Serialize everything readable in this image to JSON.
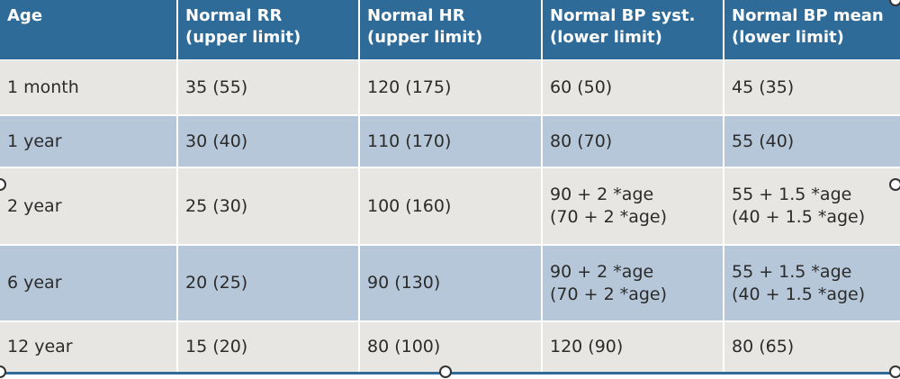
{
  "table": {
    "header": [
      [
        "Age"
      ],
      [
        "Normal RR",
        "(upper limit)"
      ],
      [
        "Normal HR",
        "(upper limit)"
      ],
      [
        "Normal BP syst.",
        "(lower limit)"
      ],
      [
        "Normal BP mean",
        "(lower limit)"
      ]
    ],
    "rows": [
      [
        [
          "1 month"
        ],
        [
          "35 (55)"
        ],
        [
          "120 (175)"
        ],
        [
          "60 (50)"
        ],
        [
          "45 (35)"
        ]
      ],
      [
        [
          "1 year"
        ],
        [
          "30 (40)"
        ],
        [
          "110 (170)"
        ],
        [
          "80 (70)"
        ],
        [
          "55 (40)"
        ]
      ],
      [
        [
          "2 year"
        ],
        [
          "25 (30)"
        ],
        [
          "100 (160)"
        ],
        [
          "90 + 2 *age",
          "(70 + 2 *age)"
        ],
        [
          "55 + 1.5 *age",
          "(40 + 1.5 *age)"
        ]
      ],
      [
        [
          "6 year"
        ],
        [
          "20 (25)"
        ],
        [
          "90 (130)"
        ],
        [
          "90 + 2 *age",
          "(70 + 2 *age)"
        ],
        [
          "55 + 1.5 *age",
          "(40 + 1.5 *age)"
        ]
      ],
      [
        [
          "12 year"
        ],
        [
          "15 (20)"
        ],
        [
          "80 (100)"
        ],
        [
          "120 (90)"
        ],
        [
          "80 (65)"
        ]
      ]
    ]
  }
}
